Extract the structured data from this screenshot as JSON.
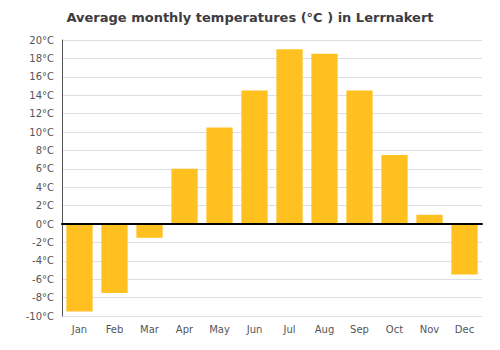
{
  "chart_data": {
    "type": "bar",
    "title": "Average monthly temperatures (°C ) in Lerrnakert",
    "categories": [
      "Jan",
      "Feb",
      "Mar",
      "Apr",
      "May",
      "Jun",
      "Jul",
      "Aug",
      "Sep",
      "Oct",
      "Nov",
      "Dec"
    ],
    "values": [
      -9.5,
      -7.5,
      -1.5,
      6.0,
      10.5,
      14.5,
      19.0,
      18.5,
      14.5,
      7.5,
      1.0,
      -5.5
    ],
    "color": "#FFC020",
    "ylim": [
      -10,
      20
    ],
    "yticks": [
      {
        "value": -10,
        "label": "-10°C"
      },
      {
        "value": -8,
        "label": "-8°C"
      },
      {
        "value": -6,
        "label": "-6°C"
      },
      {
        "value": -4,
        "label": "-4°C"
      },
      {
        "value": -2,
        "label": "-2°C"
      },
      {
        "value": 0,
        "label": "0°C"
      },
      {
        "value": 2,
        "label": "2°C"
      },
      {
        "value": 4,
        "label": "4°C"
      },
      {
        "value": 6,
        "label": "6°C"
      },
      {
        "value": 8,
        "label": "8°C"
      },
      {
        "value": 10,
        "label": "10°C"
      },
      {
        "value": 12,
        "label": "12°C"
      },
      {
        "value": 14,
        "label": "14°C"
      },
      {
        "value": 16,
        "label": "16°C"
      },
      {
        "value": 18,
        "label": "18°C"
      },
      {
        "value": 20,
        "label": "20°C"
      }
    ],
    "grid": true
  }
}
